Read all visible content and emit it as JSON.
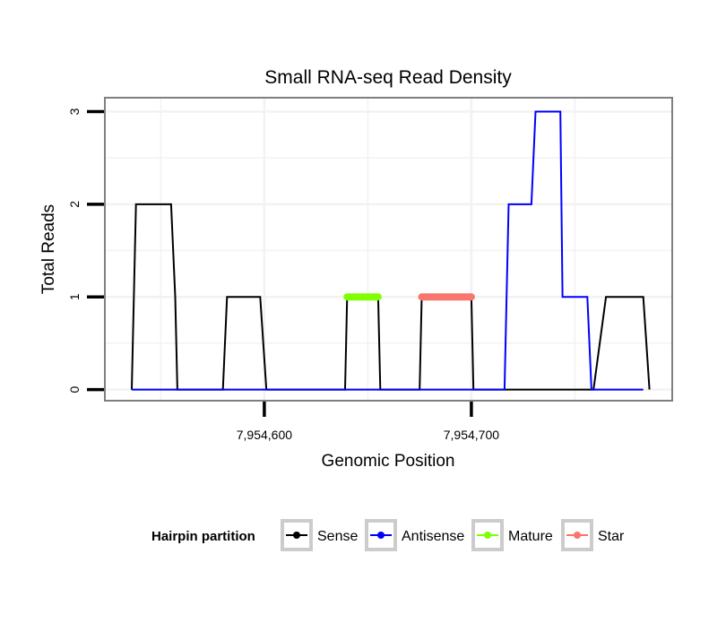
{
  "chart_data": {
    "type": "line",
    "title": "Small RNA-seq Read Density",
    "xlabel": "Genomic Position",
    "ylabel": "Total Reads",
    "xlim": [
      7954523,
      7954797
    ],
    "ylim": [
      -0.12,
      3.15
    ],
    "x_ticks": [
      7954600,
      7954700
    ],
    "x_tick_labels": [
      "7,954,600",
      "7,954,700"
    ],
    "y_ticks": [
      0,
      1,
      2,
      3
    ],
    "y_tick_labels": [
      "0",
      "1",
      "2",
      "3"
    ],
    "grid": true,
    "legend": {
      "title": "Hairpin partition",
      "position": "bottom",
      "entries": [
        "Sense",
        "Antisense",
        "Mature",
        "Star"
      ]
    },
    "series": [
      {
        "name": "Sense",
        "color": "#000000",
        "x": [
          7954536,
          7954538,
          7954541,
          7954555,
          7954557,
          7954558,
          7954580,
          7954582,
          7954598,
          7954601,
          7954639,
          7954640,
          7954655,
          7954656,
          7954675,
          7954676,
          7954700,
          7954701,
          7954759,
          7954765,
          7954783,
          7954786
        ],
        "values": [
          0,
          2,
          2,
          2,
          1,
          0,
          0,
          1,
          1,
          0,
          0,
          1,
          1,
          0,
          0,
          1,
          1,
          0,
          0,
          1,
          1,
          0
        ]
      },
      {
        "name": "Antisense",
        "color": "#0000ff",
        "x": [
          7954536,
          7954716,
          7954718,
          7954729,
          7954731,
          7954743,
          7954744,
          7954756,
          7954758,
          7954783
        ],
        "values": [
          0,
          0,
          2,
          2,
          3,
          3,
          1,
          1,
          0,
          0
        ]
      },
      {
        "name": "Mature",
        "color": "#7fff00",
        "x": [
          7954640,
          7954655
        ],
        "values": [
          1,
          1
        ]
      },
      {
        "name": "Star",
        "color": "#f8766d",
        "x": [
          7954676,
          7954700
        ],
        "values": [
          1,
          1
        ]
      }
    ]
  }
}
